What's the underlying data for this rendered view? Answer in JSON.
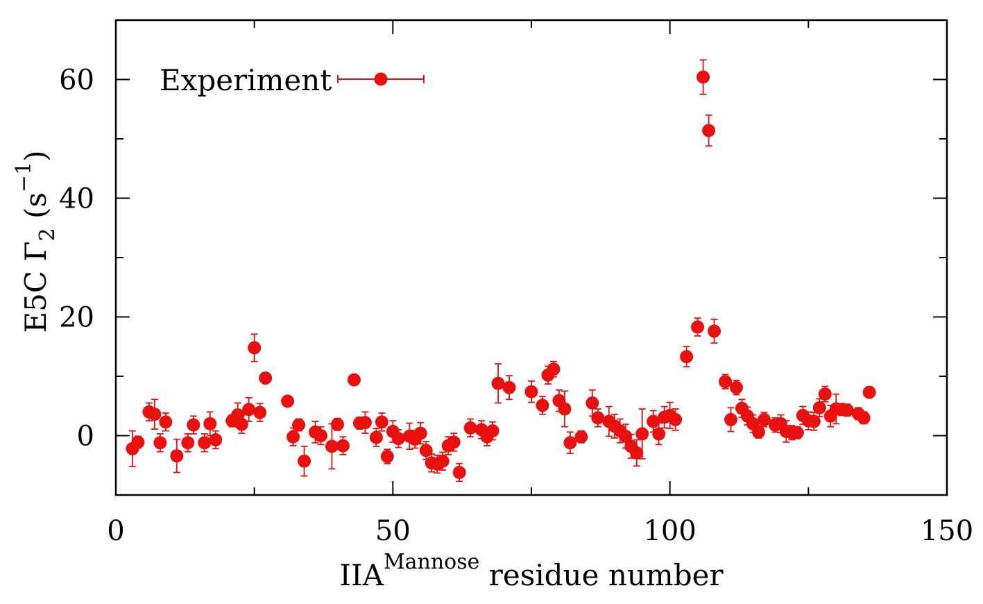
{
  "chart_data": {
    "type": "scatter",
    "xlabel_main": "IIA",
    "xlabel_sup": "Mannose",
    "xlabel_rest": " residue number",
    "ylabel_main": "E5C  Γ",
    "ylabel_sub": "2",
    "ylabel_paren": " (s",
    "ylabel_sup": "−1",
    "ylabel_close": ")",
    "legend_label": "Experiment",
    "legend_position": "top-left",
    "xlim": [
      0,
      150
    ],
    "ylim": [
      -10,
      70
    ],
    "xticks": [
      0,
      50,
      100,
      150
    ],
    "yticks": [
      0,
      20,
      40,
      60
    ],
    "color": "#e8110f",
    "series": [
      {
        "name": "Experiment",
        "points": [
          {
            "x": 3,
            "y": -2.2,
            "err": 3.0
          },
          {
            "x": 4,
            "y": -1.1,
            "err": 1.0
          },
          {
            "x": 6,
            "y": 4.0,
            "err": 1.5
          },
          {
            "x": 7,
            "y": 3.6,
            "err": 2.5
          },
          {
            "x": 8,
            "y": -1.2,
            "err": 1.5
          },
          {
            "x": 9,
            "y": 2.3,
            "err": 1.5
          },
          {
            "x": 11,
            "y": -3.4,
            "err": 2.8
          },
          {
            "x": 13,
            "y": -1.2,
            "err": 1.5
          },
          {
            "x": 14,
            "y": 1.8,
            "err": 1.5
          },
          {
            "x": 16,
            "y": -1.2,
            "err": 1.5
          },
          {
            "x": 17,
            "y": 2.0,
            "err": 2.0
          },
          {
            "x": 18,
            "y": -0.7,
            "err": 1.5
          },
          {
            "x": 21,
            "y": 2.5,
            "err": 1.0
          },
          {
            "x": 22,
            "y": 3.5,
            "err": 2.0
          },
          {
            "x": 22.7,
            "y": 1.9,
            "err": 1.5
          },
          {
            "x": 24,
            "y": 4.4,
            "err": 2.0
          },
          {
            "x": 25,
            "y": 14.8,
            "err": 2.3
          },
          {
            "x": 26,
            "y": 3.9,
            "err": 1.5
          },
          {
            "x": 27,
            "y": 9.7,
            "err": 0.8
          },
          {
            "x": 31,
            "y": 5.8,
            "err": 0.8
          },
          {
            "x": 32,
            "y": -0.2,
            "err": 1.5
          },
          {
            "x": 33,
            "y": 1.8,
            "err": 1.0
          },
          {
            "x": 34,
            "y": -4.3,
            "err": 2.5
          },
          {
            "x": 36,
            "y": 0.6,
            "err": 1.8
          },
          {
            "x": 37,
            "y": 0.0,
            "err": 1.5
          },
          {
            "x": 39,
            "y": -1.8,
            "err": 3.8
          },
          {
            "x": 40,
            "y": 1.9,
            "err": 1.0
          },
          {
            "x": 41,
            "y": -1.7,
            "err": 1.5
          },
          {
            "x": 43,
            "y": 9.4,
            "err": 0.8
          },
          {
            "x": 44,
            "y": 2.1,
            "err": 1.0
          },
          {
            "x": 45,
            "y": 2.2,
            "err": 1.8
          },
          {
            "x": 47,
            "y": -0.3,
            "err": 1.5
          },
          {
            "x": 48,
            "y": 2.3,
            "err": 1.5
          },
          {
            "x": 49,
            "y": -3.5,
            "err": 1.2
          },
          {
            "x": 50,
            "y": 0.7,
            "err": 1.8
          },
          {
            "x": 51,
            "y": -0.5,
            "err": 1.5
          },
          {
            "x": 53,
            "y": -0.1,
            "err": 2.2
          },
          {
            "x": 54,
            "y": -0.6,
            "err": 1.5
          },
          {
            "x": 55,
            "y": 0.4,
            "err": 1.8
          },
          {
            "x": 56,
            "y": -2.5,
            "err": 1.5
          },
          {
            "x": 57,
            "y": -4.6,
            "err": 1.5
          },
          {
            "x": 58,
            "y": -4.8,
            "err": 1.5
          },
          {
            "x": 59,
            "y": -4.3,
            "err": 1.5
          },
          {
            "x": 60,
            "y": -1.7,
            "err": 1.5
          },
          {
            "x": 61,
            "y": -1.1,
            "err": 1.5
          },
          {
            "x": 62,
            "y": -6.2,
            "err": 1.5
          },
          {
            "x": 64,
            "y": 1.3,
            "err": 1.5
          },
          {
            "x": 66,
            "y": 1.0,
            "err": 1.5
          },
          {
            "x": 67,
            "y": -0.2,
            "err": 1.5
          },
          {
            "x": 68,
            "y": 0.8,
            "err": 1.5
          },
          {
            "x": 69,
            "y": 8.8,
            "err": 3.3
          },
          {
            "x": 71,
            "y": 8.1,
            "err": 2.0
          },
          {
            "x": 75,
            "y": 7.4,
            "err": 1.8
          },
          {
            "x": 77,
            "y": 5.1,
            "err": 1.5
          },
          {
            "x": 78,
            "y": 10.2,
            "err": 1.5
          },
          {
            "x": 79,
            "y": 11.2,
            "err": 1.3
          },
          {
            "x": 80,
            "y": 5.9,
            "err": 1.8
          },
          {
            "x": 81,
            "y": 4.5,
            "err": 3.0
          },
          {
            "x": 82,
            "y": -1.2,
            "err": 1.8
          },
          {
            "x": 84,
            "y": -0.2,
            "err": 1.0
          },
          {
            "x": 86,
            "y": 5.5,
            "err": 2.2
          },
          {
            "x": 87,
            "y": 3.0,
            "err": 1.5
          },
          {
            "x": 89,
            "y": 2.4,
            "err": 2.5
          },
          {
            "x": 90,
            "y": 1.6,
            "err": 2.0
          },
          {
            "x": 91,
            "y": 0.8,
            "err": 2.0
          },
          {
            "x": 92,
            "y": -0.1,
            "err": 2.0
          },
          {
            "x": 93,
            "y": -1.8,
            "err": 2.0
          },
          {
            "x": 94,
            "y": -2.9,
            "err": 2.2
          },
          {
            "x": 95,
            "y": 0.3,
            "err": 4.2
          },
          {
            "x": 97,
            "y": 2.4,
            "err": 1.8
          },
          {
            "x": 98,
            "y": 0.3,
            "err": 1.8
          },
          {
            "x": 99,
            "y": 3.1,
            "err": 1.8
          },
          {
            "x": 100,
            "y": 3.4,
            "err": 2.2
          },
          {
            "x": 101,
            "y": 2.7,
            "err": 1.8
          },
          {
            "x": 103,
            "y": 13.3,
            "err": 1.7
          },
          {
            "x": 105,
            "y": 18.3,
            "err": 1.5
          },
          {
            "x": 106,
            "y": 60.4,
            "err": 2.9
          },
          {
            "x": 107,
            "y": 51.4,
            "err": 2.6
          },
          {
            "x": 108,
            "y": 17.6,
            "err": 2.0
          },
          {
            "x": 110,
            "y": 9.1,
            "err": 1.2
          },
          {
            "x": 111,
            "y": 2.7,
            "err": 2.0
          },
          {
            "x": 112,
            "y": 8.1,
            "err": 1.2
          },
          {
            "x": 113,
            "y": 4.6,
            "err": 1.5
          },
          {
            "x": 114,
            "y": 3.3,
            "err": 1.5
          },
          {
            "x": 115,
            "y": 2.0,
            "err": 1.5
          },
          {
            "x": 116,
            "y": 0.6,
            "err": 1.0
          },
          {
            "x": 117,
            "y": 2.7,
            "err": 1.2
          },
          {
            "x": 119,
            "y": 1.8,
            "err": 1.2
          },
          {
            "x": 120,
            "y": 2.0,
            "err": 1.5
          },
          {
            "x": 121,
            "y": 0.7,
            "err": 1.8
          },
          {
            "x": 122,
            "y": 0.5,
            "err": 1.2
          },
          {
            "x": 123,
            "y": 0.5,
            "err": 1.0
          },
          {
            "x": 124,
            "y": 3.4,
            "err": 1.5
          },
          {
            "x": 125,
            "y": 2.5,
            "err": 1.5
          },
          {
            "x": 126,
            "y": 2.4,
            "err": 1.5
          },
          {
            "x": 127,
            "y": 4.7,
            "err": 1.5
          },
          {
            "x": 128,
            "y": 7.0,
            "err": 1.3
          },
          {
            "x": 129,
            "y": 3.3,
            "err": 1.8
          },
          {
            "x": 130,
            "y": 4.5,
            "err": 2.5
          },
          {
            "x": 131,
            "y": 4.4,
            "err": 1.0
          },
          {
            "x": 132,
            "y": 4.3,
            "err": 1.0
          },
          {
            "x": 134,
            "y": 3.7,
            "err": 1.0
          },
          {
            "x": 135,
            "y": 3.0,
            "err": 1.0
          },
          {
            "x": 136,
            "y": 7.3,
            "err": 0.8
          }
        ]
      }
    ]
  }
}
